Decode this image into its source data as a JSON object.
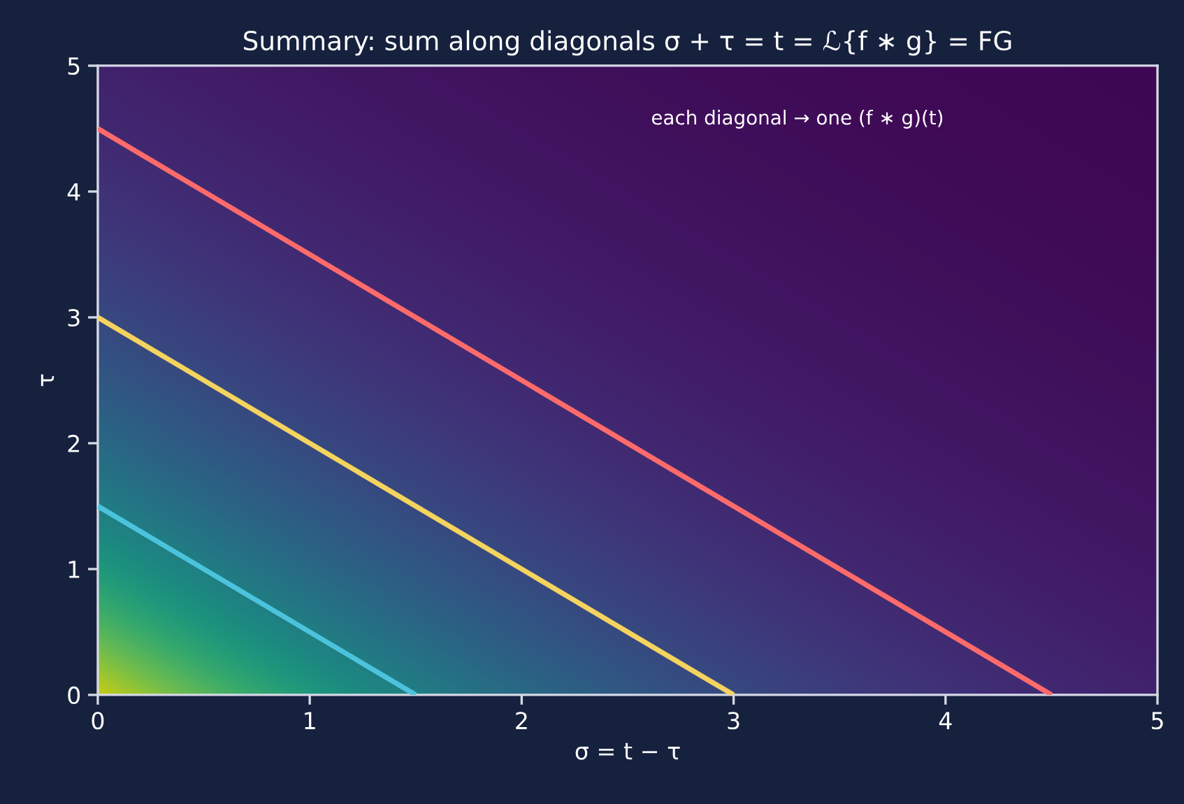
{
  "chart_data": {
    "type": "line",
    "title": "Summary: sum along diagonals σ + τ = t = ℒ{f ∗ g} = FG",
    "xlabel": "σ = t − τ",
    "ylabel": "τ",
    "annotations": [
      "each diagonal → one (f ∗ g)(t)"
    ],
    "series": [
      {
        "color": "#4cc3dc",
        "x": [
          0,
          1.5
        ],
        "values": [
          1.5,
          0
        ]
      },
      {
        "color": "#f4d35e",
        "x": [
          0,
          3
        ],
        "values": [
          3,
          0
        ]
      },
      {
        "color": "#ff6b6b",
        "x": [
          0,
          4.5
        ],
        "values": [
          4.5,
          0
        ]
      }
    ],
    "xlim": [
      0,
      5
    ],
    "ylim": [
      0,
      5
    ],
    "xticks": [
      0,
      1,
      2,
      3,
      4,
      5
    ],
    "yticks": [
      0,
      1,
      2,
      3,
      4,
      5
    ],
    "marker": "none",
    "line_style": "solid"
  }
}
